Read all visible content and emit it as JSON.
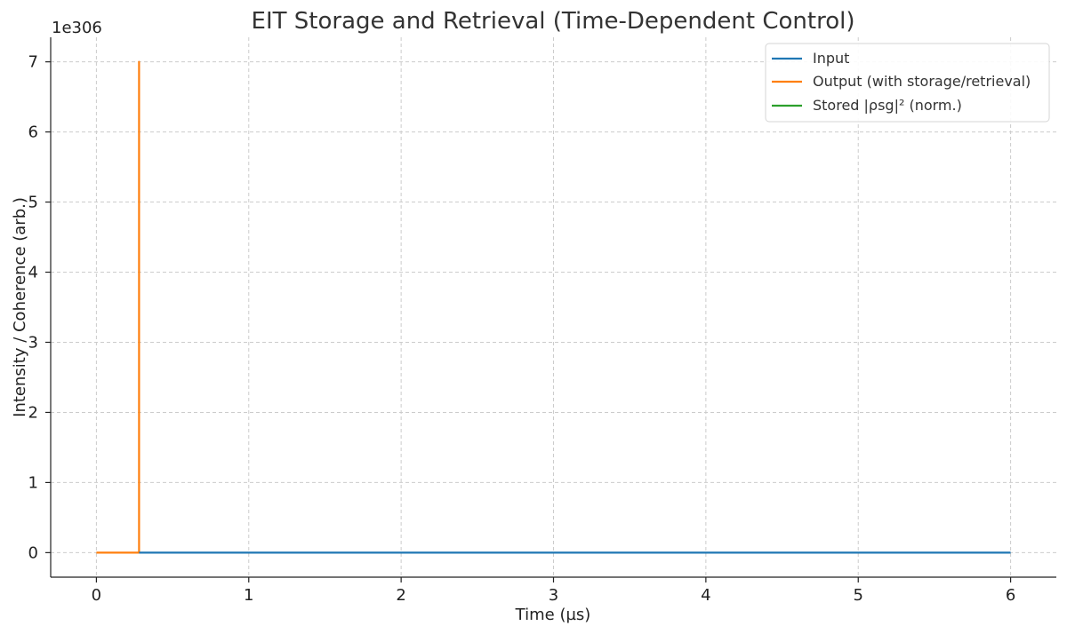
{
  "chart_data": {
    "type": "line",
    "title": "EIT Storage and Retrieval (Time-Dependent Control)",
    "xlabel": "Time (µs)",
    "ylabel": "Intensity / Coherence (arb.)",
    "y_offset_label": "1e306",
    "xlim": [
      -0.3,
      6.3
    ],
    "ylim": [
      -0.35,
      7.35
    ],
    "x_ticks": [
      0,
      1,
      2,
      3,
      4,
      5,
      6
    ],
    "y_ticks": [
      0,
      1,
      2,
      3,
      4,
      5,
      6,
      7
    ],
    "grid": true,
    "legend_position": "top-right",
    "series": [
      {
        "name": "Input",
        "color": "#1f77b4",
        "x": [
          0.28,
          6.0
        ],
        "y": [
          0,
          0
        ]
      },
      {
        "name": "Output (with storage/retrieval)",
        "color": "#ff7f0e",
        "x": [
          0.0,
          0.28,
          0.28,
          0.28
        ],
        "y": [
          0,
          0,
          7.0,
          0
        ]
      },
      {
        "name": "Stored |ρsg|² (norm.)",
        "color": "#2ca02c",
        "x": [],
        "y": []
      }
    ]
  }
}
